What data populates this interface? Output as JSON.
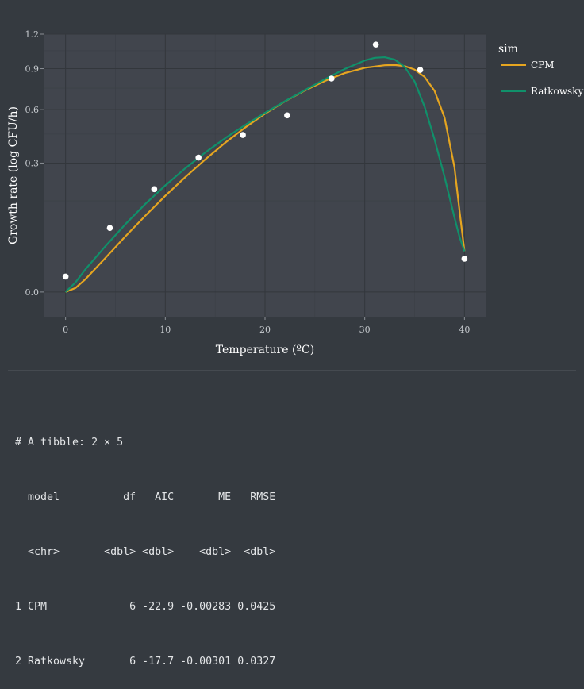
{
  "chart_data": {
    "type": "line",
    "xlabel": "Temperature (ºC)",
    "ylabel": "Growth rate (log CFU/h)",
    "xlim": [
      -2.2,
      42.2
    ],
    "y_scale": "sqrt",
    "ylim": [
      -0.011,
      1.2
    ],
    "x_ticks": [
      0,
      10,
      20,
      30,
      40
    ],
    "y_ticks": [
      {
        "value": 0.0,
        "label": "0.0"
      },
      {
        "value": 0.3,
        "label": "0.3"
      },
      {
        "value": 0.6,
        "label": "0.6"
      },
      {
        "value": 0.9,
        "label": "0.9"
      },
      {
        "value": 1.2,
        "label": "1.2"
      }
    ],
    "legend": {
      "title": "sim",
      "position": "right"
    },
    "series": [
      {
        "name": "CPM",
        "color": "#e5a520",
        "x": [
          0,
          1,
          2,
          4,
          6,
          8,
          10,
          12,
          14,
          16,
          18,
          20,
          22,
          24,
          26,
          28,
          30,
          32,
          33,
          34,
          35,
          36,
          37,
          38,
          39,
          39.5,
          40
        ],
        "y": [
          0.0,
          0.0003,
          0.003,
          0.021,
          0.056,
          0.105,
          0.167,
          0.238,
          0.317,
          0.402,
          0.488,
          0.574,
          0.656,
          0.733,
          0.804,
          0.865,
          0.907,
          0.928,
          0.93,
          0.921,
          0.893,
          0.835,
          0.73,
          0.55,
          0.28,
          0.12,
          0.03
        ]
      },
      {
        "name": "Ratkowsky",
        "color": "#10906a",
        "x": [
          0,
          1,
          2,
          4,
          6,
          8,
          10,
          12,
          14,
          16,
          18,
          20,
          22,
          24,
          26,
          28,
          30,
          31,
          32,
          33,
          34,
          35,
          36,
          37,
          38,
          39,
          39.5,
          40
        ],
        "y": [
          0.0,
          0.0017,
          0.0094,
          0.038,
          0.083,
          0.14,
          0.205,
          0.276,
          0.351,
          0.427,
          0.503,
          0.58,
          0.657,
          0.736,
          0.817,
          0.898,
          0.967,
          0.99,
          0.995,
          0.975,
          0.915,
          0.8,
          0.62,
          0.42,
          0.24,
          0.1,
          0.055,
          0.03
        ]
      }
    ],
    "points": {
      "color": "#ffffff",
      "x": [
        0,
        4.44,
        8.89,
        13.33,
        17.78,
        22.22,
        26.67,
        31.11,
        35.56,
        40
      ],
      "y": [
        0.0043,
        0.074,
        0.191,
        0.326,
        0.445,
        0.563,
        0.822,
        1.105,
        0.89,
        0.02
      ]
    }
  },
  "console": {
    "header": "# A tibble: 2 × 5",
    "columns": [
      "model",
      "df",
      "AIC",
      "ME",
      "RMSE"
    ],
    "types": [
      "<chr>",
      "<dbl>",
      "<dbl>",
      "<dbl>",
      "<dbl>"
    ],
    "rows": [
      [
        "1",
        "CPM",
        "6",
        "-22.9",
        "-0.00283",
        "0.0425"
      ],
      [
        "2",
        "Ratkowsky",
        "6",
        "-17.7",
        "-0.00301",
        "0.0327"
      ]
    ]
  }
}
